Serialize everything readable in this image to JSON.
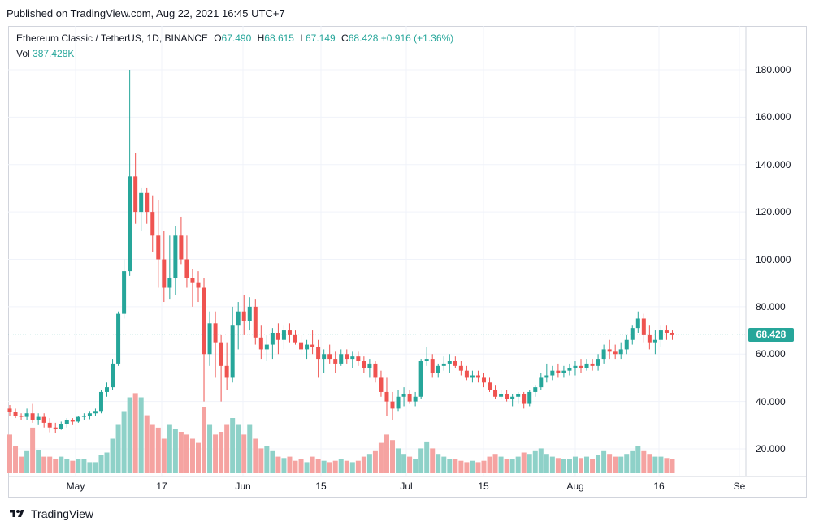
{
  "header": {
    "published": "Published on TradingView.com, Aug 22, 2021 16:45 UTC+7"
  },
  "legend": {
    "symbol": "Ethereum Classic / TetherUS, 1D, BINANCE",
    "o_key": "O",
    "o_val": "67.490",
    "h_key": "H",
    "h_val": "68.615",
    "l_key": "L",
    "l_val": "67.149",
    "c_key": "C",
    "c_val": "68.428",
    "change": "+0.916 (+1.36%)",
    "vol_key": "Vol",
    "vol_val": "387.428K"
  },
  "footer": {
    "brand": "TradingView"
  },
  "colors": {
    "up": "#26a69a",
    "down": "#ef5350",
    "vol_up": "#8ed1c8",
    "vol_down": "#f5a3a1",
    "grid": "#f0f3fa"
  },
  "chart_data": {
    "type": "candlestick",
    "y_ticks": [
      "180.000",
      "160.000",
      "140.000",
      "120.000",
      "100.000",
      "80.000",
      "60.000",
      "40.000",
      "20.000"
    ],
    "x_ticks": [
      "May",
      "17",
      "Jun",
      "15",
      "Jul",
      "15",
      "Aug",
      "16",
      "Se"
    ],
    "last_price": "68.428",
    "ylim": [
      8,
      186
    ],
    "candles": [
      [
        37,
        38.5,
        34,
        35.5,
        28
      ],
      [
        35.5,
        37,
        33,
        34,
        20
      ],
      [
        34,
        35,
        32,
        33.5,
        12
      ],
      [
        33.5,
        37,
        32,
        35,
        16
      ],
      [
        35,
        39,
        31,
        32,
        33
      ],
      [
        32,
        35,
        30,
        33.5,
        17
      ],
      [
        33.5,
        35,
        29,
        31,
        12
      ],
      [
        31,
        33,
        27,
        29,
        12
      ],
      [
        29,
        31,
        26.5,
        28.5,
        10
      ],
      [
        28.5,
        31.5,
        28,
        30.5,
        12
      ],
      [
        30.5,
        33,
        29,
        32,
        10
      ],
      [
        32,
        33,
        30,
        31.5,
        9
      ],
      [
        31.5,
        34,
        31,
        33.5,
        10
      ],
      [
        33.5,
        35,
        32,
        34,
        10
      ],
      [
        34,
        36,
        32.5,
        35,
        8
      ],
      [
        35,
        37,
        34,
        36,
        8
      ],
      [
        36,
        45,
        35,
        44,
        13
      ],
      [
        44,
        48,
        42,
        46,
        15
      ],
      [
        46,
        58,
        45,
        56,
        25
      ],
      [
        56,
        78,
        55,
        77,
        35
      ],
      [
        77,
        100,
        75,
        95,
        45
      ],
      [
        95,
        180,
        93,
        135,
        55
      ],
      [
        135,
        145,
        115,
        120,
        58
      ],
      [
        120,
        130,
        112,
        128,
        55
      ],
      [
        128,
        130,
        115,
        120,
        42
      ],
      [
        120,
        127,
        103,
        110,
        35
      ],
      [
        110,
        125,
        88,
        100,
        33
      ],
      [
        100,
        112,
        82,
        88,
        25
      ],
      [
        88,
        110,
        83,
        92,
        35
      ],
      [
        92,
        114,
        85,
        110,
        32
      ],
      [
        110,
        118,
        98,
        100,
        30
      ],
      [
        100,
        110,
        88,
        92,
        28
      ],
      [
        92,
        96,
        80,
        90,
        25
      ],
      [
        90,
        95,
        82,
        88,
        22
      ],
      [
        88,
        92,
        40,
        60,
        48
      ],
      [
        60,
        78,
        55,
        73,
        35
      ],
      [
        73,
        78,
        50,
        65,
        28
      ],
      [
        65,
        68,
        40,
        55,
        30
      ],
      [
        55,
        65,
        45,
        50,
        35
      ],
      [
        50,
        80,
        48,
        72,
        40
      ],
      [
        72,
        82,
        62,
        78,
        35
      ],
      [
        78,
        85,
        68,
        74,
        28
      ],
      [
        74,
        84,
        70,
        80,
        35
      ],
      [
        80,
        83,
        64,
        67,
        25
      ],
      [
        67,
        72,
        58,
        62,
        18
      ],
      [
        62,
        68,
        57,
        64,
        20
      ],
      [
        64,
        71,
        58,
        69,
        16
      ],
      [
        69,
        73,
        60,
        66,
        12
      ],
      [
        66,
        72,
        62,
        70,
        11
      ],
      [
        70,
        73,
        65,
        68,
        12
      ],
      [
        68,
        70,
        64,
        65,
        9
      ],
      [
        65,
        68,
        60,
        62,
        10
      ],
      [
        62,
        66,
        58,
        64,
        8
      ],
      [
        64,
        70,
        60,
        63,
        12
      ],
      [
        63,
        66,
        50,
        58,
        10
      ],
      [
        58,
        62,
        52,
        60,
        9
      ],
      [
        60,
        64,
        56,
        58,
        8
      ],
      [
        58,
        61,
        52,
        56,
        9
      ],
      [
        56,
        62,
        55,
        60,
        10
      ],
      [
        60,
        62,
        56,
        58,
        9
      ],
      [
        58,
        61,
        54,
        59,
        8
      ],
      [
        59,
        61,
        55,
        57,
        9
      ],
      [
        57,
        59,
        52,
        54,
        12
      ],
      [
        54,
        58,
        50,
        56,
        14
      ],
      [
        56,
        57,
        48,
        50,
        16
      ],
      [
        50,
        53,
        42,
        44,
        22
      ],
      [
        44,
        50,
        34,
        40,
        28
      ],
      [
        40,
        44,
        32,
        37,
        24
      ],
      [
        37,
        45,
        36,
        42,
        18
      ],
      [
        42,
        46,
        38,
        43,
        14
      ],
      [
        43,
        45,
        39,
        40,
        12
      ],
      [
        40,
        44,
        38,
        42,
        10
      ],
      [
        42,
        58,
        41,
        57,
        18
      ],
      [
        57,
        63,
        55,
        58,
        23
      ],
      [
        58,
        60,
        50,
        52,
        18
      ],
      [
        52,
        56,
        50,
        55,
        14
      ],
      [
        55,
        59,
        53,
        56,
        12
      ],
      [
        56,
        60,
        52,
        57,
        10
      ],
      [
        57,
        59,
        54,
        55,
        10
      ],
      [
        55,
        57,
        51,
        53,
        9
      ],
      [
        53,
        55,
        49,
        50,
        8
      ],
      [
        50,
        53,
        48,
        51,
        9
      ],
      [
        51,
        53,
        48,
        50,
        8
      ],
      [
        50,
        52,
        46,
        48,
        9
      ],
      [
        48,
        50,
        44,
        45,
        12
      ],
      [
        45,
        47,
        41,
        42,
        14
      ],
      [
        42,
        45,
        41,
        43,
        12
      ],
      [
        43,
        45,
        40,
        41,
        10
      ],
      [
        41,
        43,
        38,
        42,
        10
      ],
      [
        42,
        44,
        39,
        43,
        12
      ],
      [
        43,
        44,
        37,
        39,
        15
      ],
      [
        39,
        45,
        38,
        44,
        14
      ],
      [
        44,
        47,
        42,
        46,
        16
      ],
      [
        46,
        52,
        45,
        50,
        18
      ],
      [
        50,
        56,
        48,
        51,
        14
      ],
      [
        51,
        55,
        49,
        53,
        12
      ],
      [
        53,
        56,
        50,
        52,
        11
      ],
      [
        52,
        55,
        50,
        53,
        10
      ],
      [
        53,
        56,
        51,
        54,
        10
      ],
      [
        54,
        57,
        51,
        55,
        12
      ],
      [
        55,
        58,
        52,
        54,
        11
      ],
      [
        54,
        58,
        53,
        56,
        12
      ],
      [
        56,
        58,
        53,
        55,
        10
      ],
      [
        55,
        60,
        53,
        58,
        13
      ],
      [
        58,
        64,
        56,
        62,
        16
      ],
      [
        62,
        66,
        58,
        61,
        14
      ],
      [
        61,
        64,
        58,
        60,
        12
      ],
      [
        60,
        65,
        58,
        62,
        12
      ],
      [
        62,
        68,
        60,
        66,
        14
      ],
      [
        66,
        72,
        64,
        71,
        16
      ],
      [
        71,
        78,
        69,
        75,
        20
      ],
      [
        75,
        77,
        65,
        68,
        16
      ],
      [
        68,
        72,
        62,
        65,
        14
      ],
      [
        65,
        70,
        60,
        66,
        12
      ],
      [
        66,
        72,
        63,
        70,
        12
      ],
      [
        70,
        72,
        66,
        69,
        11
      ],
      [
        69,
        70,
        66,
        68,
        10
      ]
    ]
  }
}
